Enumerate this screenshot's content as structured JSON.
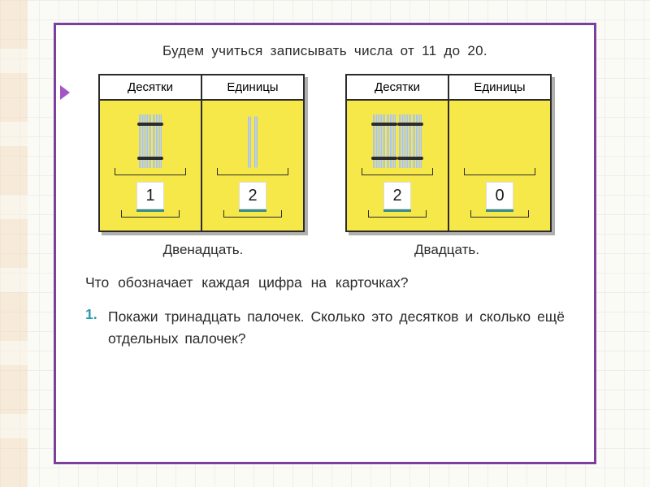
{
  "intro": "Будем учиться записывать числа от 11 до 20.",
  "headers": {
    "tens": "Десятки",
    "ones": "Единицы"
  },
  "box1": {
    "tens_bundles": 1,
    "ones_sticks": 2,
    "tens_digit": "1",
    "ones_digit": "2",
    "label": "Двенадцать."
  },
  "box2": {
    "tens_bundles": 2,
    "ones_sticks": 0,
    "tens_digit": "2",
    "ones_digit": "0",
    "label": "Двадцать."
  },
  "question": "Что обозначает каждая цифра на карточках?",
  "task": {
    "num": "1.",
    "text": "Покажи тринадцать палочек. Сколько это десятков и сколько ещё отдельных палочек?"
  },
  "colors": {
    "frame_border": "#7b3fa0",
    "cell_bg": "#f7e84a",
    "stick": "#9fb9d0",
    "task_num": "#2a9baa",
    "card_underline": "#3a8a8a"
  }
}
